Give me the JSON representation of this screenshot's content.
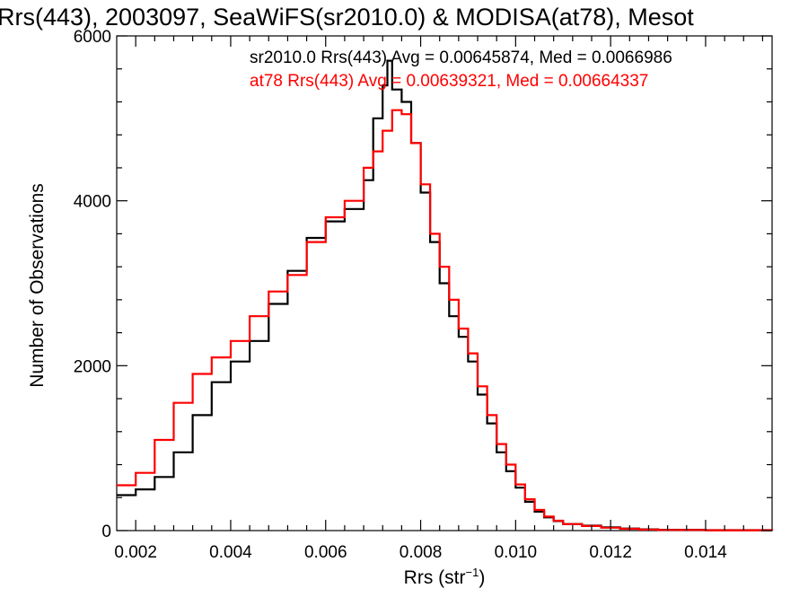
{
  "chart_data": {
    "type": "line",
    "step": true,
    "title": "Rrs(443), 2003097, SeaWiFS(sr2010.0) & MODISA(at78), Mesot",
    "xlabel": "Rrs (str",
    "xlabel_sup": "−1",
    "xlabel_close": ")",
    "ylabel": "Number of Observations",
    "xlim": [
      0.0016,
      0.0154
    ],
    "ylim": [
      0,
      6000
    ],
    "x_ticks": [
      0.002,
      0.004,
      0.006,
      0.008,
      0.01,
      0.012,
      0.014
    ],
    "x_tick_labels": [
      "0.002",
      "0.004",
      "0.006",
      "0.008",
      "0.010",
      "0.012",
      "0.014"
    ],
    "y_ticks": [
      0,
      2000,
      4000,
      6000
    ],
    "y_tick_labels": [
      "0",
      "2000",
      "4000",
      "6000"
    ],
    "annotations": [
      {
        "text": "sr2010.0 Rrs(443) Avg = 0.00645874, Med = 0.0066986",
        "color": "#000000"
      },
      {
        "text": "at78 Rrs(443) Avg = 0.00639321, Med = 0.00664337",
        "color": "#ff0000"
      }
    ],
    "series": [
      {
        "color": "#000000",
        "x": [
          0.0016,
          0.002,
          0.0024,
          0.0028,
          0.0032,
          0.0036,
          0.004,
          0.0044,
          0.0048,
          0.0052,
          0.0056,
          0.006,
          0.0064,
          0.0068,
          0.007,
          0.0072,
          0.0073,
          0.0074,
          0.0076,
          0.0078,
          0.008,
          0.0082,
          0.0084,
          0.0086,
          0.0088,
          0.009,
          0.0092,
          0.0094,
          0.0096,
          0.0098,
          0.01,
          0.0102,
          0.0104,
          0.0106,
          0.0108,
          0.011,
          0.0114,
          0.0118,
          0.0122,
          0.0126,
          0.013,
          0.014,
          0.0154
        ],
        "y": [
          430,
          500,
          650,
          950,
          1400,
          1800,
          2050,
          2300,
          2750,
          3150,
          3550,
          3750,
          3900,
          4250,
          5000,
          5400,
          5700,
          5350,
          5200,
          4700,
          4100,
          3500,
          3000,
          2600,
          2350,
          2050,
          1650,
          1300,
          950,
          720,
          520,
          350,
          230,
          160,
          115,
          80,
          60,
          40,
          25,
          15,
          10,
          5,
          0
        ]
      },
      {
        "color": "#ff0000",
        "x": [
          0.0016,
          0.002,
          0.0024,
          0.0028,
          0.0032,
          0.0036,
          0.004,
          0.0044,
          0.0048,
          0.0052,
          0.0056,
          0.006,
          0.0064,
          0.0068,
          0.007,
          0.0072,
          0.0074,
          0.0076,
          0.0078,
          0.008,
          0.0082,
          0.0084,
          0.0086,
          0.0088,
          0.009,
          0.0092,
          0.0094,
          0.0096,
          0.0098,
          0.01,
          0.0102,
          0.0104,
          0.0106,
          0.0108,
          0.011,
          0.0114,
          0.0118,
          0.0122,
          0.0126,
          0.013,
          0.014,
          0.0154
        ],
        "y": [
          550,
          700,
          1100,
          1550,
          1900,
          2100,
          2300,
          2600,
          2900,
          3100,
          3500,
          3800,
          4000,
          4400,
          4600,
          4850,
          5100,
          5050,
          4700,
          4200,
          3600,
          3200,
          2800,
          2450,
          2150,
          1750,
          1400,
          1050,
          800,
          560,
          380,
          250,
          170,
          120,
          80,
          55,
          35,
          22,
          12,
          8,
          4,
          0
        ]
      }
    ]
  }
}
